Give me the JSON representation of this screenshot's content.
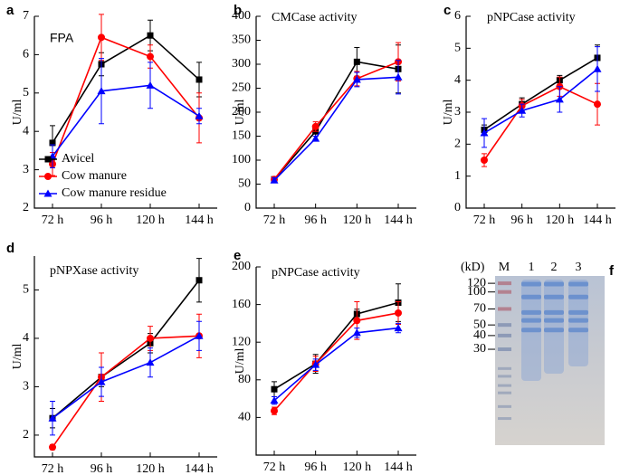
{
  "chart_data": [
    {
      "type": "line",
      "panel_label": "a",
      "title": "FPA",
      "ylabel": "U/ml",
      "categories": [
        "72 h",
        "96 h",
        "120 h",
        "144 h"
      ],
      "series": [
        {
          "name": "Avicel",
          "color": "#000000",
          "marker": "square",
          "values": [
            3.7,
            5.75,
            6.5,
            5.35
          ],
          "errors": [
            0.45,
            0.3,
            0.4,
            0.45
          ]
        },
        {
          "name": "Cow manure",
          "color": "#ff0000",
          "marker": "circle",
          "values": [
            3.15,
            6.45,
            5.95,
            4.35
          ],
          "errors": [
            0.3,
            0.6,
            0.3,
            0.65
          ]
        },
        {
          "name": "Cow manure residue",
          "color": "#0000ff",
          "marker": "triangle",
          "values": [
            3.35,
            5.05,
            5.2,
            4.4
          ],
          "errors": [
            0.3,
            0.85,
            0.6,
            0.2
          ]
        }
      ],
      "ylim": [
        2,
        7
      ],
      "yticks": [
        2,
        3,
        4,
        5,
        6,
        7
      ],
      "legend": "lower left"
    },
    {
      "type": "line",
      "panel_label": "b",
      "title": "CMCase activity",
      "ylabel": "U/ml",
      "categories": [
        "72 h",
        "96 h",
        "120 h",
        "144 h"
      ],
      "series": [
        {
          "color": "#000000",
          "marker": "square",
          "values": [
            60,
            160,
            305,
            290
          ],
          "errors": [
            5,
            10,
            30,
            50
          ]
        },
        {
          "color": "#ff0000",
          "marker": "circle",
          "values": [
            60,
            170,
            270,
            305
          ],
          "errors": [
            5,
            10,
            15,
            40
          ]
        },
        {
          "color": "#0000ff",
          "marker": "triangle",
          "values": [
            58,
            145,
            268,
            273
          ],
          "errors": [
            5,
            5,
            15,
            35
          ]
        }
      ],
      "ylim": [
        0,
        400
      ],
      "yticks": [
        0,
        50,
        100,
        150,
        200,
        250,
        300,
        350,
        400
      ]
    },
    {
      "type": "line",
      "panel_label": "c",
      "title": "pNPCase activity",
      "ylabel": "U/ml",
      "categories": [
        "72 h",
        "96 h",
        "120 h",
        "144 h"
      ],
      "series": [
        {
          "color": "#000000",
          "marker": "square",
          "values": [
            2.45,
            3.25,
            4.0,
            4.7
          ],
          "errors": [
            0.15,
            0.2,
            0.15,
            0.4
          ]
        },
        {
          "color": "#ff0000",
          "marker": "circle",
          "values": [
            1.5,
            3.2,
            3.8,
            3.25
          ],
          "errors": [
            0.2,
            0.2,
            0.3,
            0.65
          ]
        },
        {
          "color": "#0000ff",
          "marker": "triangle",
          "values": [
            2.35,
            3.05,
            3.4,
            4.35
          ],
          "errors": [
            0.45,
            0.2,
            0.4,
            0.7
          ]
        }
      ],
      "ylim": [
        0,
        6
      ],
      "yticks": [
        0,
        1,
        2,
        3,
        4,
        5,
        6
      ]
    },
    {
      "type": "line",
      "panel_label": "d",
      "title": "pNPXase activity",
      "ylabel": "U/ml",
      "categories": [
        "72 h",
        "96 h",
        "120 h",
        "144 h"
      ],
      "series": [
        {
          "color": "#000000",
          "marker": "square",
          "values": [
            2.35,
            3.2,
            3.9,
            5.2
          ],
          "errors": [
            0.2,
            0.2,
            0.2,
            0.45
          ]
        },
        {
          "color": "#ff0000",
          "marker": "circle",
          "values": [
            1.75,
            3.2,
            4.0,
            4.05
          ],
          "errors": [
            0.05,
            0.5,
            0.25,
            0.45
          ]
        },
        {
          "color": "#0000ff",
          "marker": "triangle",
          "values": [
            2.35,
            3.1,
            3.5,
            4.05
          ],
          "errors": [
            0.35,
            0.3,
            0.3,
            0.3
          ]
        }
      ],
      "ylim": [
        1.55,
        5.7
      ],
      "yticks": [
        2,
        3,
        4,
        5
      ]
    },
    {
      "type": "line",
      "panel_label": "e",
      "title": "pNPCase activity",
      "ylabel": "U/ml",
      "categories": [
        "72 h",
        "96 h",
        "120 h",
        "144 h"
      ],
      "series": [
        {
          "color": "#000000",
          "marker": "square",
          "values": [
            70,
            97,
            150,
            162
          ],
          "errors": [
            8,
            10,
            5,
            20
          ]
        },
        {
          "color": "#ff0000",
          "marker": "circle",
          "values": [
            47,
            97,
            143,
            151
          ],
          "errors": [
            4,
            8,
            20,
            12
          ]
        },
        {
          "color": "#0000ff",
          "marker": "triangle",
          "values": [
            58,
            96,
            130,
            135
          ],
          "errors": [
            4,
            6,
            5,
            5
          ]
        }
      ],
      "ylim": [
        0,
        200
      ],
      "yticks": [
        40,
        80,
        120,
        160,
        200
      ]
    },
    {
      "type": "gel",
      "panel_label": "f",
      "ylabel": "(kD)",
      "lanes": [
        "M",
        "1",
        "2",
        "3"
      ],
      "log": true,
      "ylim": [
        4,
        140
      ],
      "yticks": [
        120,
        100,
        70,
        50,
        40,
        30
      ]
    }
  ]
}
